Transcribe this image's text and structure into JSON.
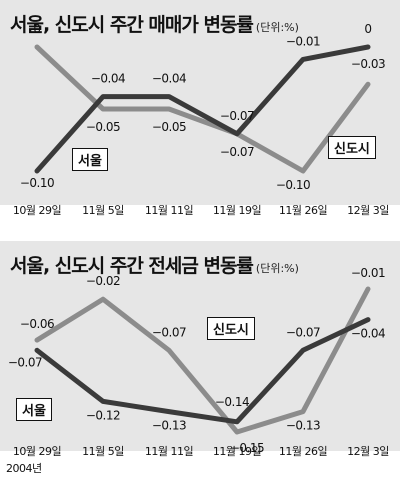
{
  "charts": [
    {
      "title": "서울, 신도시 주간 매매가 변동률",
      "unit": "(단위:%)",
      "year_label": "2004년",
      "categories": [
        "10월 29일",
        "11월 5일",
        "11월 11일",
        "11월 19일",
        "11월 26일",
        "12월 3일"
      ],
      "series": [
        {
          "name": "서울",
          "color": "#3a3a3a",
          "values": [
            -0.1,
            -0.04,
            -0.04,
            -0.07,
            -0.01,
            0
          ],
          "labels": [
            "−0.10",
            "−0.04",
            "−0.04",
            "−0.07",
            "−0.01",
            "0"
          ]
        },
        {
          "name": "신도시",
          "color": "#8c8c8c",
          "values": [
            0,
            -0.05,
            -0.05,
            -0.07,
            -0.1,
            -0.03
          ],
          "labels": [
            "0",
            "−0.05",
            "−0.05",
            "−0.07",
            "−0.10",
            "−0.03"
          ]
        }
      ]
    },
    {
      "title": "서울, 신도시 주간 전세금 변동률",
      "unit": "(단위:%)",
      "year_label": "2004년",
      "categories": [
        "10월 29일",
        "11월 5일",
        "11월 11일",
        "11월 19일",
        "11월 26일",
        "12월 3일"
      ],
      "series": [
        {
          "name": "서울",
          "color": "#3a3a3a",
          "values": [
            -0.07,
            -0.12,
            -0.13,
            -0.14,
            -0.07,
            -0.04
          ],
          "labels": [
            "−0.07",
            "−0.12",
            "−0.13",
            "−0.14",
            "−0.07",
            "−0.04"
          ]
        },
        {
          "name": "신도시",
          "color": "#8c8c8c",
          "values": [
            -0.06,
            -0.02,
            -0.07,
            -0.15,
            -0.13,
            -0.01
          ],
          "labels": [
            "−0.06",
            "−0.02",
            "−0.07",
            "−0.15",
            "−0.13",
            "−0.01"
          ]
        }
      ]
    }
  ],
  "chart_data": [
    {
      "type": "line",
      "title": "서울, 신도시 주간 매매가 변동률",
      "categories": [
        "10월 29일",
        "11월 5일",
        "11월 11일",
        "11월 19일",
        "11월 26일",
        "12월 3일"
      ],
      "series": [
        {
          "name": "서울",
          "values": [
            -0.1,
            -0.04,
            -0.04,
            -0.07,
            -0.01,
            0
          ]
        },
        {
          "name": "신도시",
          "values": [
            0,
            -0.05,
            -0.05,
            -0.07,
            -0.1,
            -0.03
          ]
        }
      ],
      "ylim": [
        -0.1,
        0
      ],
      "grid": false
    },
    {
      "type": "line",
      "title": "서울, 신도시 주간 전세금 변동률",
      "categories": [
        "10월 29일",
        "11월 5일",
        "11월 11일",
        "11월 19일",
        "11월 26일",
        "12월 3일"
      ],
      "series": [
        {
          "name": "서울",
          "values": [
            -0.07,
            -0.12,
            -0.13,
            -0.14,
            -0.07,
            -0.04
          ]
        },
        {
          "name": "신도시",
          "values": [
            -0.06,
            -0.02,
            -0.07,
            -0.15,
            -0.13,
            -0.01
          ]
        }
      ],
      "ylim": [
        -0.15,
        -0.01
      ],
      "grid": false
    }
  ]
}
